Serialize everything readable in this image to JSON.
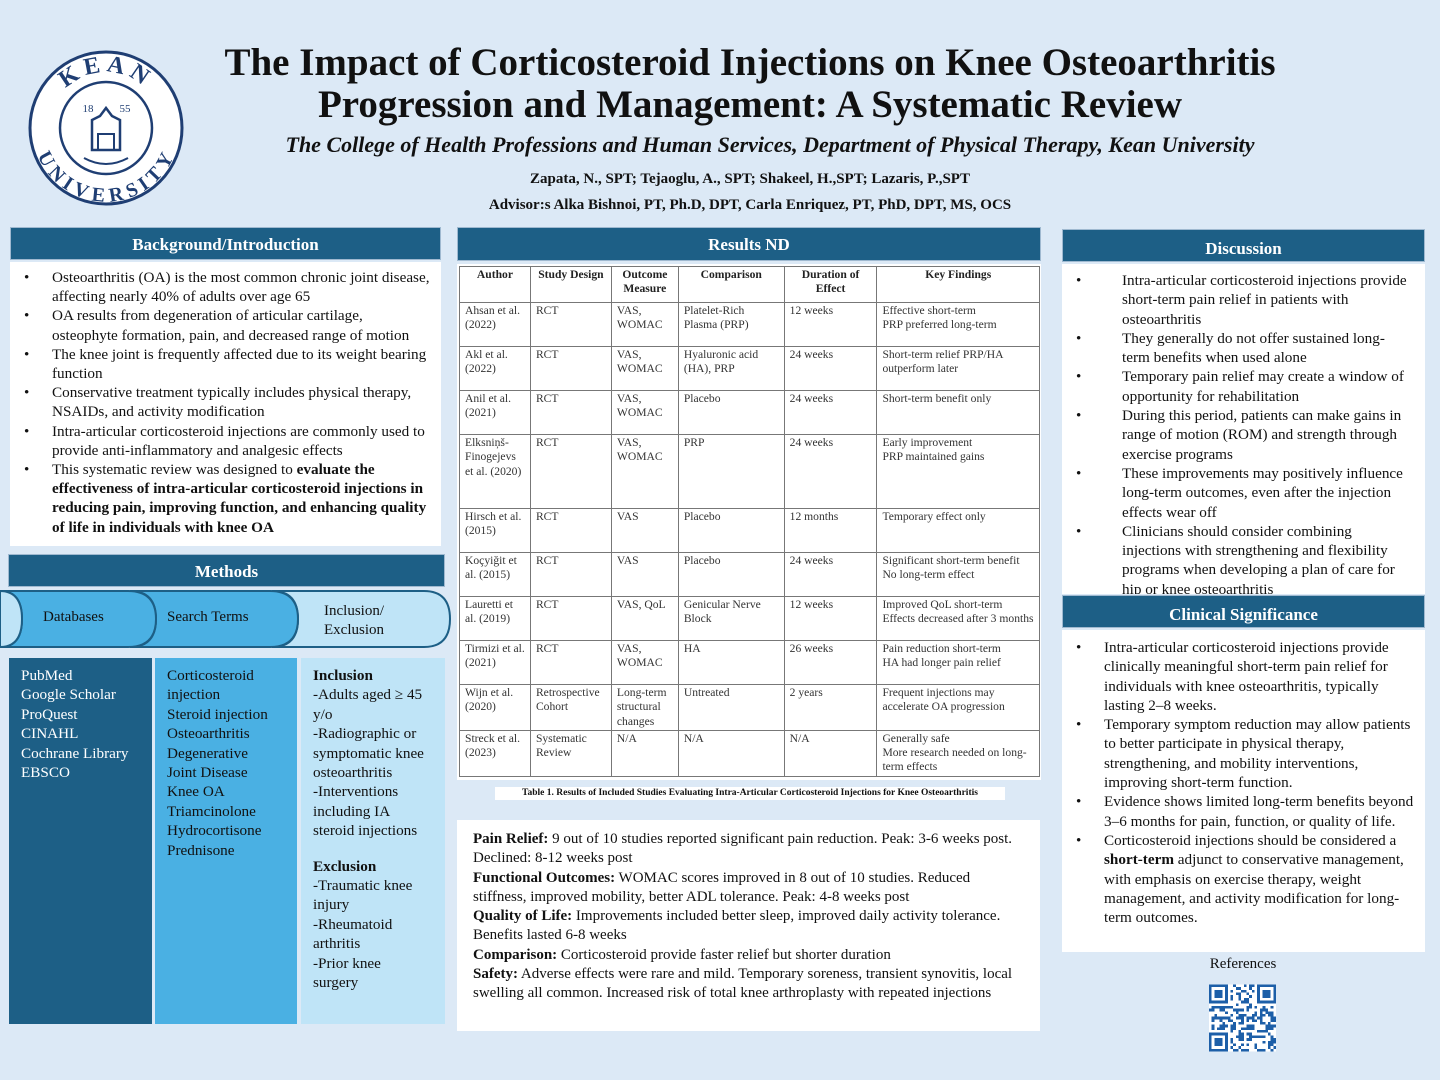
{
  "header": {
    "title_line1": "The Impact of Corticosteroid Injections on Knee Osteoarthritis",
    "title_line2": "Progression and Management: A Systematic Review",
    "subtitle": "The College of Health Professions and Human Services, Department of Physical Therapy, Kean University",
    "authors": "Zapata, N., SPT; Tejaoglu, A., SPT; Shakeel, H.,SPT; Lazaris, P.,SPT",
    "advisors": "Advisor:s Alka Bishnoi, PT, Ph.D, DPT, Carla Enriquez, PT, PhD, DPT, MS, OCS"
  },
  "logo": {
    "arc_top": "KEAN",
    "arc_bottom": "UNIVERSITY",
    "year_left": "18",
    "year_right": "55"
  },
  "background": {
    "heading": "Background/Introduction",
    "items": [
      "Osteoarthritis (OA) is the most common chronic joint disease, affecting nearly 40% of adults over age 65",
      "OA results from degeneration of articular cartilage, osteophyte formation, pain, and decreased range of motion",
      "The knee joint is frequently affected due to its weight bearing function",
      "Conservative treatment typically includes physical therapy, NSAIDs, and activity modification",
      "Intra-articular corticosteroid injections are commonly used to provide anti-inflammatory and analgesic effects"
    ],
    "last_item_prefix": "This systematic review was designed to ",
    "last_item_bold": "evaluate the effectiveness of intra-articular corticosteroid injections in reducing pain, improving function, and enhancing quality of life in individuals with knee OA"
  },
  "methods": {
    "heading": "Methods",
    "steps": [
      "Databases",
      "Search Terms",
      "Inclusion/",
      "Exclusion"
    ],
    "databases": [
      "PubMed",
      "Google Scholar",
      "ProQuest",
      "CINAHL",
      "Cochrane Library",
      "EBSCO"
    ],
    "search_terms": [
      "Corticosteroid",
      "injection",
      "Steroid injection",
      "Osteoarthritis",
      "Degenerative",
      "Joint Disease",
      "Knee OA",
      "Triamcinolone",
      "Hydrocortisone",
      "Prednisone"
    ],
    "inclusion_heading": "Inclusion",
    "inclusion_lines": [
      "-Adults aged ≥ 45",
      "y/o",
      "-Radiographic or",
      "symptomatic knee",
      "osteoarthritis",
      "-Interventions",
      "including IA",
      "steroid injections"
    ],
    "exclusion_heading": "Exclusion",
    "exclusion_lines": [
      "-Traumatic knee",
      "injury",
      "-Rheumatoid",
      "arthritis",
      "-Prior knee",
      "surgery"
    ]
  },
  "results": {
    "heading": "Results ND",
    "columns": [
      "Author",
      "Study Design",
      "Outcome Measure",
      "Comparison",
      "Duration of Effect",
      "Key Findings"
    ],
    "rows": [
      [
        "Ahsan et al. (2022)",
        "RCT",
        "VAS, WOMAC",
        "Platelet-Rich Plasma (PRP)",
        "12 weeks",
        "Effective short-term\nPRP preferred long-term"
      ],
      [
        "Akl et al. (2022)",
        "RCT",
        "VAS, WOMAC",
        "Hyaluronic acid (HA), PRP",
        "24 weeks",
        "Short-term relief PRP/HA outperform later"
      ],
      [
        "Anil et al. (2021)",
        "RCT",
        "VAS, WOMAC",
        "Placebo",
        "24 weeks",
        "Short-term benefit only"
      ],
      [
        "Elksniņš-Finogejevs et al. (2020)",
        "RCT",
        "VAS, WOMAC",
        "PRP",
        "24 weeks",
        "Early improvement\nPRP maintained gains"
      ],
      [
        "Hirsch et al. (2015)",
        "RCT",
        "VAS",
        "Placebo",
        "12 months",
        "Temporary effect only"
      ],
      [
        "Koçyiğit et al. (2015)",
        "RCT",
        "VAS",
        "Placebo",
        "24 weeks",
        "Significant short-term benefit\nNo long-term effect"
      ],
      [
        "Lauretti et al. (2019)",
        "RCT",
        "VAS, QoL",
        "Genicular Nerve Block",
        "12 weeks",
        "Improved QoL short-term\nEffects decreased after 3 months"
      ],
      [
        "Tirmizi et al. (2021)",
        "RCT",
        "VAS, WOMAC",
        "HA",
        "26 weeks",
        "Pain reduction short-term\nHA had longer pain relief"
      ],
      [
        "Wijn et al. (2020)",
        "Retrospective Cohort",
        "Long-term structural changes",
        "Untreated",
        "2 years",
        "Frequent injections may accelerate OA progression"
      ],
      [
        "Streck et al. (2023)",
        "Systematic Review",
        "N/A",
        "N/A",
        "N/A",
        "Generally safe\nMore research needed on long-term effects"
      ]
    ],
    "caption": "Table 1. Results of Included Studies Evaluating Intra-Articular Corticosteroid Injections for Knee Osteoarthritis",
    "summary": [
      {
        "label": "Pain Relief:",
        "text": " 9 out of 10 studies reported significant pain reduction. Peak: 3-6 weeks post. Declined: 8-12 weeks post"
      },
      {
        "label": "Functional Outcomes:",
        "text": " WOMAC  scores improved in 8 out of 10 studies. Reduced stiffness, improved mobility, better ADL tolerance. Peak: 4-8 weeks post"
      },
      {
        "label": "Quality of Life:",
        "text": " Improvements included better sleep, improved daily activity tolerance. Benefits lasted 6-8 weeks"
      },
      {
        "label": "Comparison:",
        "text": " Corticosteroid provide faster relief but shorter duration"
      },
      {
        "label": "Safety:",
        "text": " Adverse effects were rare and mild. Temporary soreness, transient synovitis, local swelling all common. Increased risk of total knee arthroplasty with repeated injections"
      }
    ]
  },
  "discussion": {
    "heading": "Discussion",
    "items": [
      "Intra-articular corticosteroid injections provide short-term pain relief in patients with osteoarthritis",
      "They generally do not offer sustained long-term benefits when used alone",
      "Temporary pain relief may create a window of opportunity for rehabilitation",
      "During this period, patients can make gains in range of motion (ROM) and strength through exercise programs",
      "These improvements may positively influence long-term outcomes, even after the injection effects wear off",
      "Clinicians should consider combining injections with strengthening and flexibility programs when developing a plan of care for hip or knee osteoarthritis"
    ]
  },
  "clinical": {
    "heading": "Clinical Significance",
    "items": [
      "Intra-articular corticosteroid injections provide clinically meaningful short-term pain relief for individuals with knee osteoarthritis, typically lasting 2–8 weeks.",
      "Temporary symptom reduction may allow patients to better participate in physical therapy, strengthening, and mobility interventions, improving short-term function.",
      "Evidence shows limited long-term benefits beyond 3–6 months for pain, function, or quality of life."
    ],
    "last_prefix": "Corticosteroid injections should be considered a ",
    "last_bold": "short-term",
    "last_suffix": " adjunct to conservative management, with emphasis on exercise therapy, weight management, and activity modification for long-term outcomes."
  },
  "references": {
    "label": "References"
  },
  "colors": {
    "navy": "#1d5f86",
    "mid_blue": "#4ab0e3",
    "light_blue": "#bfe4f7",
    "page_bg": "#dce9f6"
  }
}
